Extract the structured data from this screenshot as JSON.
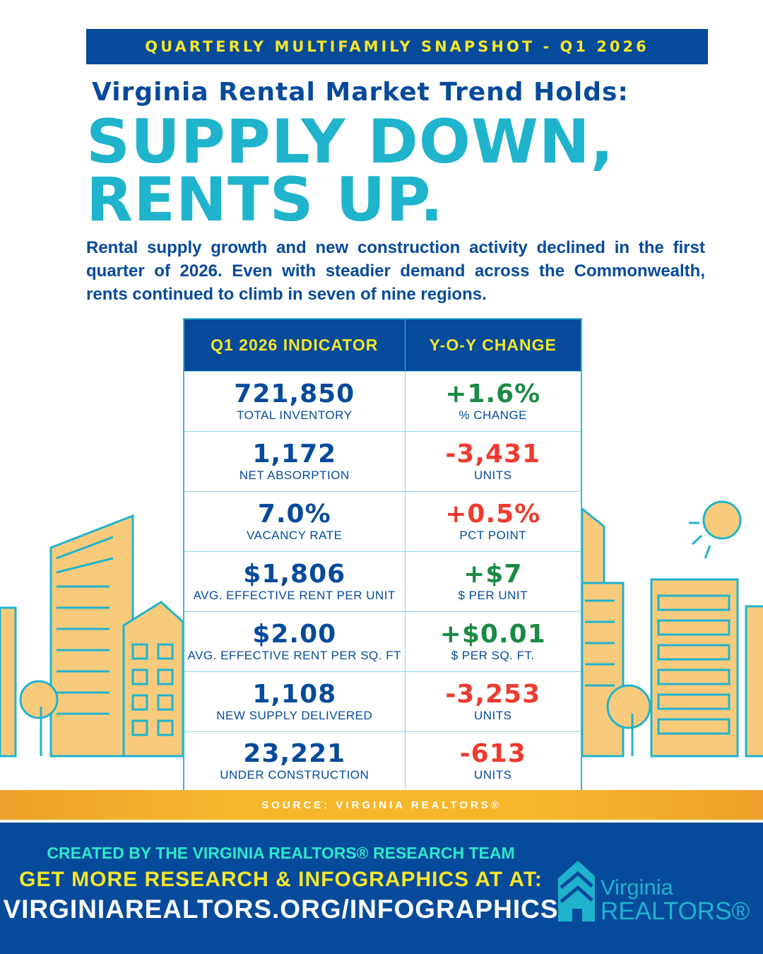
{
  "banner": "QUARTERLY MULTIFAMILY SNAPSHOT - Q1 2026",
  "subtitle": "Virginia Rental Market Trend Holds:",
  "headline_1": "SUPPLY DOWN,",
  "headline_2": "RENTS UP.",
  "intro": "Rental supply growth and new construction activity declined in the first quarter of 2026. Even with steadier demand across the Commonwealth, rents continued to climb in seven of nine regions.",
  "table": {
    "headers": [
      "Q1 2026 INDICATOR",
      "Y-O-Y CHANGE"
    ],
    "rows": [
      {
        "value": "721,850",
        "label": "TOTAL INVENTORY",
        "change": "+1.6%",
        "change_label": "% CHANGE",
        "direction": "up-green"
      },
      {
        "value": "1,172",
        "label": "NET ABSORPTION",
        "change": "-3,431",
        "change_label": "UNITS",
        "direction": "down-red"
      },
      {
        "value": "7.0%",
        "label": "VACANCY RATE",
        "change": "+0.5%",
        "change_label": "PCT POINT",
        "direction": "up-red"
      },
      {
        "value": "$1,806",
        "label": "AVG. EFFECTIVE RENT PER UNIT",
        "change": "+$7",
        "change_label": "$ PER UNIT",
        "direction": "up-green"
      },
      {
        "value": "$2.00",
        "label": "AVG. EFFECTIVE RENT PER SQ. FT",
        "change": "+$0.01",
        "change_label": "$ PER SQ. FT.",
        "direction": "up-green"
      },
      {
        "value": "1,108",
        "label": "NEW SUPPLY DELIVERED",
        "change": "-3,253",
        "change_label": "UNITS",
        "direction": "down-red"
      },
      {
        "value": "23,221",
        "label": "UNDER CONSTRUCTION",
        "change": "-613",
        "change_label": "UNITS",
        "direction": "down-red"
      }
    ]
  },
  "source": "SOURCE: VIRGINIA REALTORS®",
  "footer": {
    "created_by": "CREATED BY THE VIRGINIA REALTORS® RESEARCH TEAM",
    "cta": "GET MORE RESEARCH & INFOGRAPHICS AT AT:",
    "url": "VIRGINIAREALTORS.ORG/INFOGRAPHICS",
    "logo_line1": "Virginia",
    "logo_line2": "REALTORS®"
  },
  "colors": {
    "navy": "#054a9b",
    "teal": "#1fb3cc",
    "yellow": "#f5e62a",
    "green": "#1a8a45",
    "red": "#ee3a2f",
    "orange": "#f6b72b",
    "building": "#f8cb7c"
  }
}
